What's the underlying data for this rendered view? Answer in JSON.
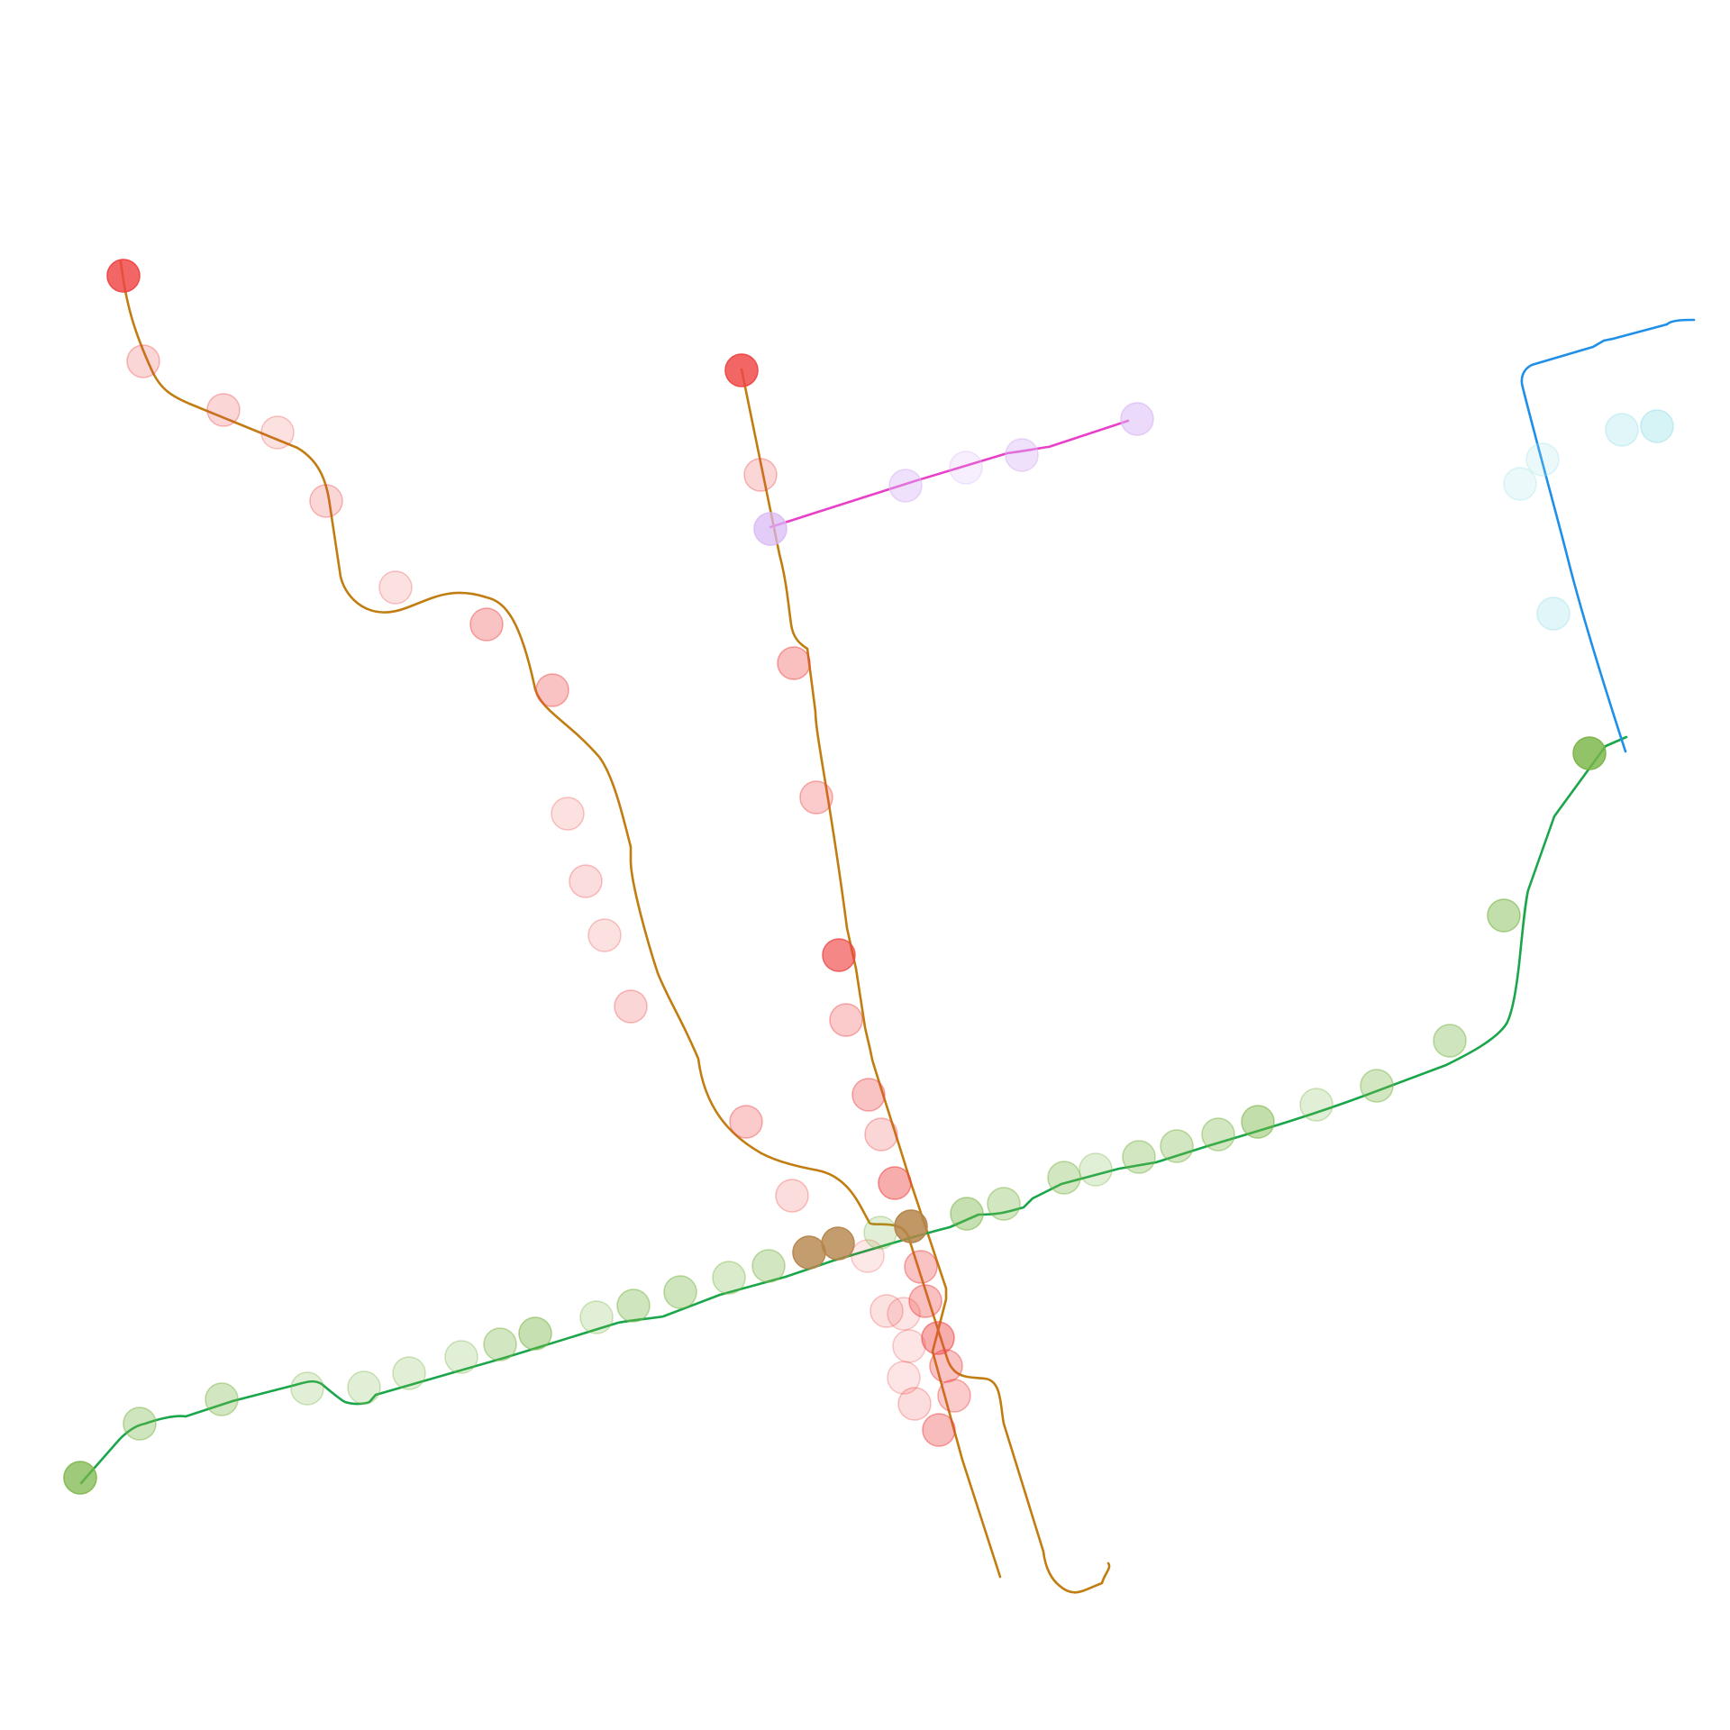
{
  "map": {
    "kind": "transit-network",
    "background": "#ffffff",
    "labels": []
  },
  "legend_colors": {
    "line_1": "#c17d11",
    "line_2": "#1aa64a",
    "line_3": "#e840c8",
    "line_4": "#1f8fe8",
    "stop_red": "#ef4444",
    "stop_green": "#7ab648",
    "stop_purple": "#d9b8f5",
    "stop_cyan": "#a6e4ea",
    "stop_brown": "#b5854a"
  },
  "routes": [
    {
      "id": "line-1-west-branch",
      "color": "#c17d11"
    },
    {
      "id": "line-1-north-branch",
      "color": "#c17d11"
    },
    {
      "id": "line-2",
      "color": "#1aa64a"
    },
    {
      "id": "line-3",
      "color": "#e840c8"
    },
    {
      "id": "line-4",
      "color": "#1f8fe8"
    }
  ],
  "stop_groups": [
    {
      "id": "line-1-stops",
      "color": "#ef4444"
    },
    {
      "id": "line-2-stops",
      "color": "#7ab648"
    },
    {
      "id": "line-3-stops",
      "color": "#d9b8f5"
    },
    {
      "id": "line-4-stops",
      "color": "#a6e4ea"
    },
    {
      "id": "interchange-stops",
      "color": "#b5854a"
    }
  ]
}
